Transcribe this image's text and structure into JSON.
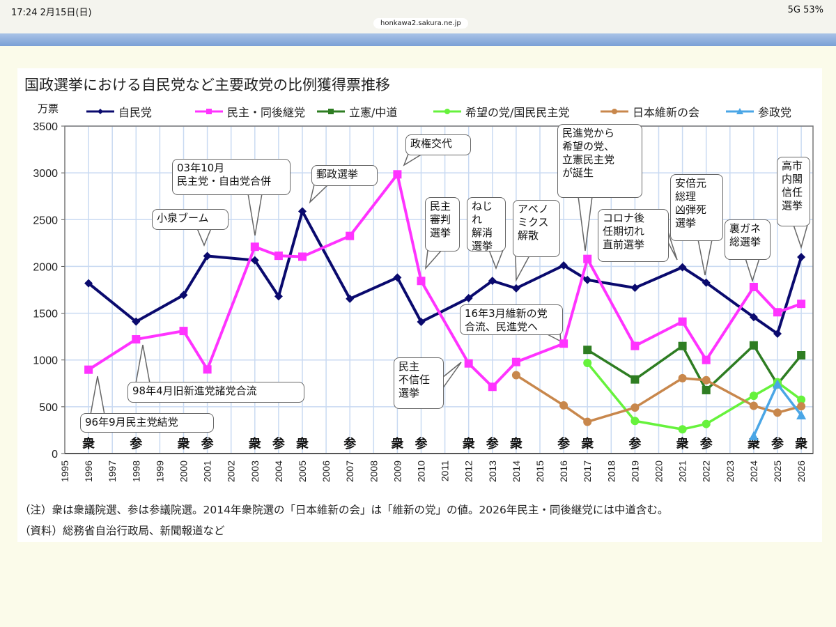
{
  "status_bar": {
    "time": "17:24  2月15日(日)",
    "signal": "5G 53%"
  },
  "browser": {
    "url": "honkawa2.sakura.ne.jp"
  },
  "colors": {
    "ldp": "#0a0a6e",
    "dpj": "#ff33ff",
    "cdp": "#2e7d22",
    "dpfp": "#66f23c",
    "ishin": "#c8874c",
    "sanseito": "#4aa6e6",
    "grid": "#c9daf2"
  },
  "chart_data": {
    "type": "line",
    "title": "国政選挙における自民党など主要政党の比例獲得票推移",
    "ylabel": "万票",
    "xlabel": "",
    "ylim": [
      0,
      3500
    ],
    "yticks": [
      "0",
      "500",
      "1000",
      "1500",
      "2000",
      "2500",
      "3000",
      "3500"
    ],
    "grid": true,
    "legend_position": "top",
    "categories": [
      "1995",
      "1996",
      "1997",
      "1998",
      "1999",
      "2000",
      "2001",
      "2002",
      "2003",
      "2004",
      "2005",
      "2006",
      "2007",
      "2008",
      "2009",
      "2010",
      "2011",
      "2012",
      "2013",
      "2014",
      "2015",
      "2016",
      "2017",
      "2018",
      "2019",
      "2020",
      "2021",
      "2022",
      "2023",
      "2024",
      "2025",
      "2026"
    ],
    "election_types": {
      "1996": "衆",
      "1998": "参",
      "2000": "衆",
      "2001": "参",
      "2003": "衆",
      "2004": "参",
      "2005": "衆",
      "2007": "参",
      "2009": "衆",
      "2010": "参",
      "2012": "衆",
      "2013": "参",
      "2014": "衆",
      "2016": "参",
      "2017": "衆",
      "2019": "参",
      "2021": "衆",
      "2022": "参",
      "2024": "衆",
      "2025": "参",
      "2026": "衆"
    },
    "series": [
      {
        "name": "自民党",
        "key": "ldp",
        "marker": "diamond",
        "points": [
          [
            1996,
            1820
          ],
          [
            1998,
            1410
          ],
          [
            2000,
            1694
          ],
          [
            2001,
            2111
          ],
          [
            2003,
            2066
          ],
          [
            2004,
            1680
          ],
          [
            2005,
            2589
          ],
          [
            2007,
            1654
          ],
          [
            2009,
            1881
          ],
          [
            2010,
            1407
          ],
          [
            2012,
            1662
          ],
          [
            2013,
            1846
          ],
          [
            2014,
            1766
          ],
          [
            2016,
            2011
          ],
          [
            2017,
            1856
          ],
          [
            2019,
            1771
          ],
          [
            2021,
            1991
          ],
          [
            2022,
            1826
          ],
          [
            2024,
            1458
          ],
          [
            2025,
            1281
          ],
          [
            2026,
            2100
          ]
        ]
      },
      {
        "name": "民主・同後継党",
        "key": "dpj",
        "marker": "square",
        "points": [
          [
            1996,
            896
          ],
          [
            1998,
            1221
          ],
          [
            2000,
            1310
          ],
          [
            2001,
            899
          ],
          [
            2003,
            2210
          ],
          [
            2004,
            2114
          ],
          [
            2005,
            2104
          ],
          [
            2007,
            2326
          ],
          [
            2009,
            2984
          ],
          [
            2010,
            1845
          ],
          [
            2012,
            963
          ],
          [
            2013,
            713
          ],
          [
            2014,
            978
          ],
          [
            2016,
            1175
          ],
          [
            2017,
            2080
          ],
          [
            2019,
            1150
          ],
          [
            2021,
            1410
          ],
          [
            2022,
            1000
          ],
          [
            2024,
            1780
          ],
          [
            2025,
            1510
          ],
          [
            2026,
            1600
          ]
        ]
      },
      {
        "name": "立憲/中道",
        "key": "cdp",
        "marker": "square",
        "points": [
          [
            2017,
            1108
          ],
          [
            2019,
            792
          ],
          [
            2021,
            1149
          ],
          [
            2022,
            678
          ],
          [
            2024,
            1156
          ],
          [
            2025,
            740
          ],
          [
            2026,
            1050
          ]
        ]
      },
      {
        "name": "希望の党/国民民主党",
        "key": "dpfp",
        "marker": "circle",
        "points": [
          [
            2017,
            968
          ],
          [
            2019,
            348
          ],
          [
            2021,
            259
          ],
          [
            2022,
            316
          ],
          [
            2024,
            617
          ],
          [
            2025,
            762
          ],
          [
            2026,
            575
          ]
        ]
      },
      {
        "name": "日本維新の会",
        "key": "ishin",
        "marker": "circle",
        "points": [
          [
            2014,
            838
          ],
          [
            2016,
            515
          ],
          [
            2017,
            339
          ],
          [
            2019,
            491
          ],
          [
            2021,
            805
          ],
          [
            2022,
            784
          ],
          [
            2024,
            510
          ],
          [
            2025,
            437
          ],
          [
            2026,
            505
          ]
        ]
      },
      {
        "name": "参政党",
        "key": "sanseito",
        "marker": "triangle",
        "points": [
          [
            2024,
            187
          ],
          [
            2025,
            742
          ],
          [
            2026,
            410
          ]
        ]
      }
    ],
    "annotations": [
      "96年9月民主党結党",
      "98年4月旧新進党諸党合流",
      "小泉ブーム",
      "03年10月\n民主党・自由党合併",
      "郵政選挙",
      "政権交代",
      "民主\n審判\n選挙",
      "ねじれ\n解消\n選挙",
      "アベノ\nミクス\n解散",
      "16年3月維新の党\n合流、民進党へ",
      "民主\n不信任\n選挙",
      "民進党から\n希望の党、\n立憲民主党\nが誕生",
      "コロナ後\n任期切れ\n直前選挙",
      "安倍元\n総理\n凶弾死\n選挙",
      "裏ガネ\n総選挙",
      "高市\n内閣\n信任\n選挙"
    ]
  },
  "footnotes": {
    "note": "（注）衆は衆議院選、参は参議院選。2014年衆院選の「日本維新の会」は「維新の党」の値。2026年民主・同後継党には中道含む。",
    "source": "（資料）総務省自治行政局、新聞報道など"
  }
}
